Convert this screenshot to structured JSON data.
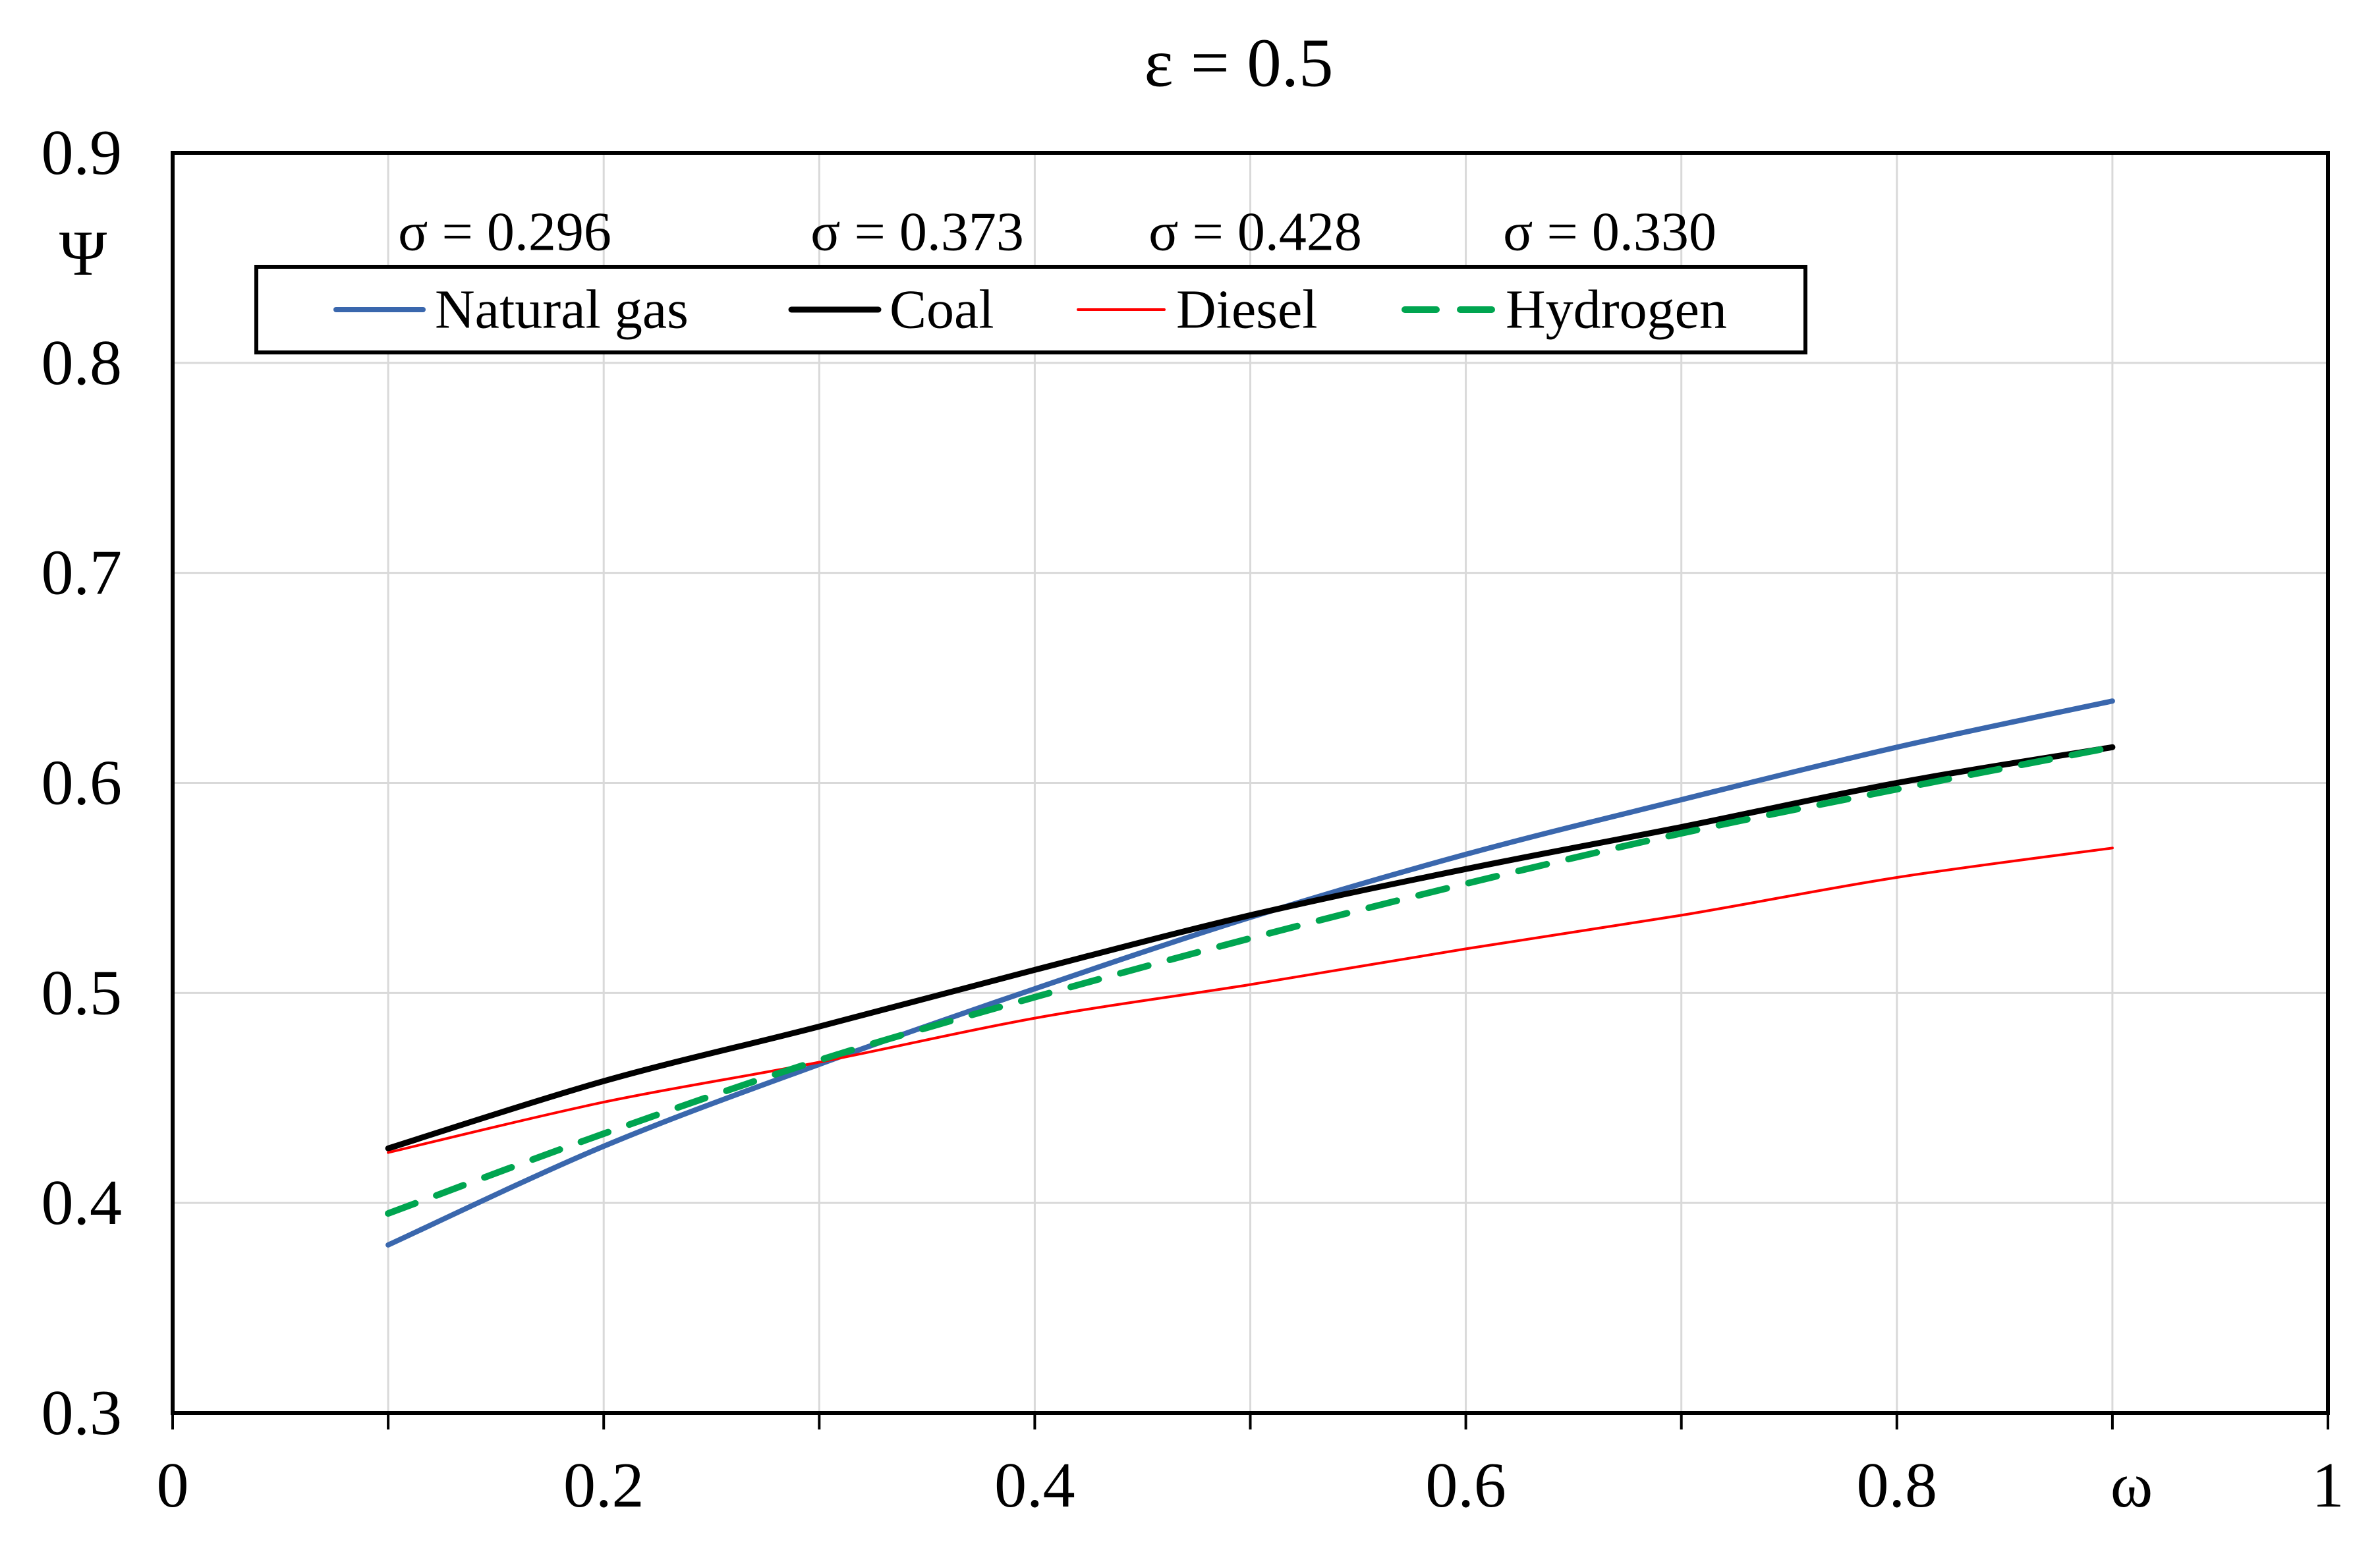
{
  "title": "ε = 0.5",
  "axes": {
    "x": {
      "label": "ω",
      "range": [
        0,
        1
      ],
      "tick_labels": [
        "0",
        "0.2",
        "0.4",
        "0.6",
        "0.8",
        "1"
      ],
      "tick_values": [
        0,
        0.2,
        0.4,
        0.6,
        0.8,
        1
      ],
      "minor_tick_step": 0.1,
      "gridline_step": 0.1
    },
    "y": {
      "label": "Ψ",
      "range": [
        0.3,
        0.9
      ],
      "tick_labels": [
        "0.9",
        "0.8",
        "0.7",
        "0.6",
        "0.5",
        "0.4",
        "0.3"
      ],
      "tick_values": [
        0.9,
        0.8,
        0.7,
        0.6,
        0.5,
        0.4,
        0.3
      ],
      "gridline_step": 0.1
    }
  },
  "sigma_annotations": [
    {
      "text": "σ = 0.296",
      "series": "Natural gas"
    },
    {
      "text": "σ = 0.373",
      "series": "Coal"
    },
    {
      "text": "σ = 0.428",
      "series": "Diesel"
    },
    {
      "text": "σ = 0.330",
      "series": "Hydrogen"
    }
  ],
  "legend": {
    "position": "top",
    "items": [
      {
        "label": "Natural gas",
        "color": "#3A67AD",
        "line_style": "solid",
        "stroke_width": 8
      },
      {
        "label": "Coal",
        "color": "#000000",
        "line_style": "solid",
        "stroke_width": 9
      },
      {
        "label": "Diesel",
        "color": "#FF0000",
        "line_style": "solid",
        "stroke_width": 4
      },
      {
        "label": "Hydrogen",
        "color": "#00A550",
        "line_style": "dashed",
        "stroke_width": 10
      }
    ]
  },
  "colors": {
    "background": "#FFFFFF",
    "gridline": "#D9D9D9",
    "axis": "#000000",
    "text": "#000000"
  },
  "chart_data": {
    "type": "line",
    "title": "ε = 0.5",
    "xlabel": "ω",
    "ylabel": "Ψ",
    "xlim": [
      0,
      1
    ],
    "ylim": [
      0.3,
      0.9
    ],
    "grid": true,
    "legend_position": "top",
    "x": [
      0.1,
      0.2,
      0.3,
      0.4,
      0.5,
      0.6,
      0.7,
      0.8,
      0.9
    ],
    "series": [
      {
        "name": "Natural gas",
        "sigma": 0.296,
        "color": "#3A67AD",
        "line_style": "solid",
        "values": [
          0.38,
          0.427,
          0.466,
          0.502,
          0.536,
          0.566,
          0.592,
          0.617,
          0.639
        ]
      },
      {
        "name": "Coal",
        "sigma": 0.373,
        "color": "#000000",
        "line_style": "solid",
        "values": [
          0.426,
          0.458,
          0.484,
          0.511,
          0.537,
          0.559,
          0.579,
          0.6,
          0.617
        ]
      },
      {
        "name": "Diesel",
        "sigma": 0.428,
        "color": "#FF0000",
        "line_style": "solid",
        "values": [
          0.424,
          0.448,
          0.467,
          0.488,
          0.504,
          0.521,
          0.537,
          0.555,
          0.569
        ]
      },
      {
        "name": "Hydrogen",
        "sigma": 0.33,
        "color": "#00A550",
        "line_style": "dashed",
        "values": [
          0.395,
          0.433,
          0.468,
          0.498,
          0.526,
          0.552,
          0.576,
          0.597,
          0.617
        ]
      }
    ]
  }
}
